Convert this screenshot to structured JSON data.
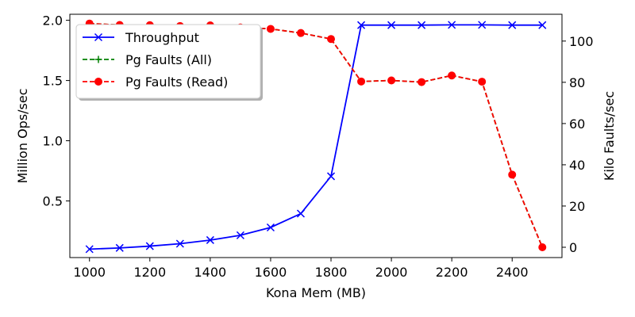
{
  "chart_data": {
    "type": "line",
    "x": [
      1000,
      1100,
      1200,
      1300,
      1400,
      1500,
      1600,
      1700,
      1800,
      1900,
      2000,
      2100,
      2200,
      2300,
      2400,
      2500
    ],
    "xlabel": "Kona Mem (MB)",
    "ylabel_left": "Million Ops/sec",
    "ylabel_right": "Kilo Faults/sec",
    "xlim": [
      935,
      2565
    ],
    "ylim_left": [
      0.03,
      2.05
    ],
    "ylim_right": [
      -5,
      113
    ],
    "xticks": [
      1000,
      1200,
      1400,
      1600,
      1800,
      2000,
      2200,
      2400
    ],
    "xtick_labels": [
      "1000",
      "1200",
      "1400",
      "1600",
      "1800",
      "2000",
      "2200",
      "2400"
    ],
    "yticks_left": [
      0.5,
      1.0,
      1.5,
      2.0
    ],
    "ytick_labels_left": [
      "0.5",
      "1.0",
      "1.5",
      "2.0"
    ],
    "yticks_right": [
      0,
      20,
      40,
      60,
      80,
      100
    ],
    "ytick_labels_right": [
      "0",
      "20",
      "40",
      "60",
      "80",
      "100"
    ],
    "grid": false,
    "legend_position": "top-left",
    "series": [
      {
        "name": "Throughput",
        "axis": "left",
        "color": "#0000ff",
        "linestyle": "solid",
        "marker": "x",
        "values": [
          0.1,
          0.11,
          0.125,
          0.145,
          0.175,
          0.215,
          0.28,
          0.395,
          0.705,
          1.96,
          1.96,
          1.96,
          1.962,
          1.962,
          1.96,
          1.96
        ]
      },
      {
        "name": "Pg Faults (All)",
        "axis": "right",
        "color": "#008000",
        "linestyle": "dashed",
        "marker": "+",
        "values": [
          108.5,
          107.8,
          107.7,
          107.3,
          107.6,
          106.6,
          105.9,
          103.9,
          101.0,
          80.4,
          80.9,
          80.1,
          83.3,
          80.3,
          35.2,
          0
        ]
      },
      {
        "name": "Pg Faults (Read)",
        "axis": "right",
        "color": "#ff0000",
        "linestyle": "dashed",
        "marker": "o",
        "values": [
          108.5,
          107.8,
          107.7,
          107.3,
          107.6,
          106.6,
          105.9,
          103.9,
          101.0,
          80.4,
          80.9,
          80.1,
          83.3,
          80.3,
          35.2,
          0
        ]
      }
    ]
  }
}
